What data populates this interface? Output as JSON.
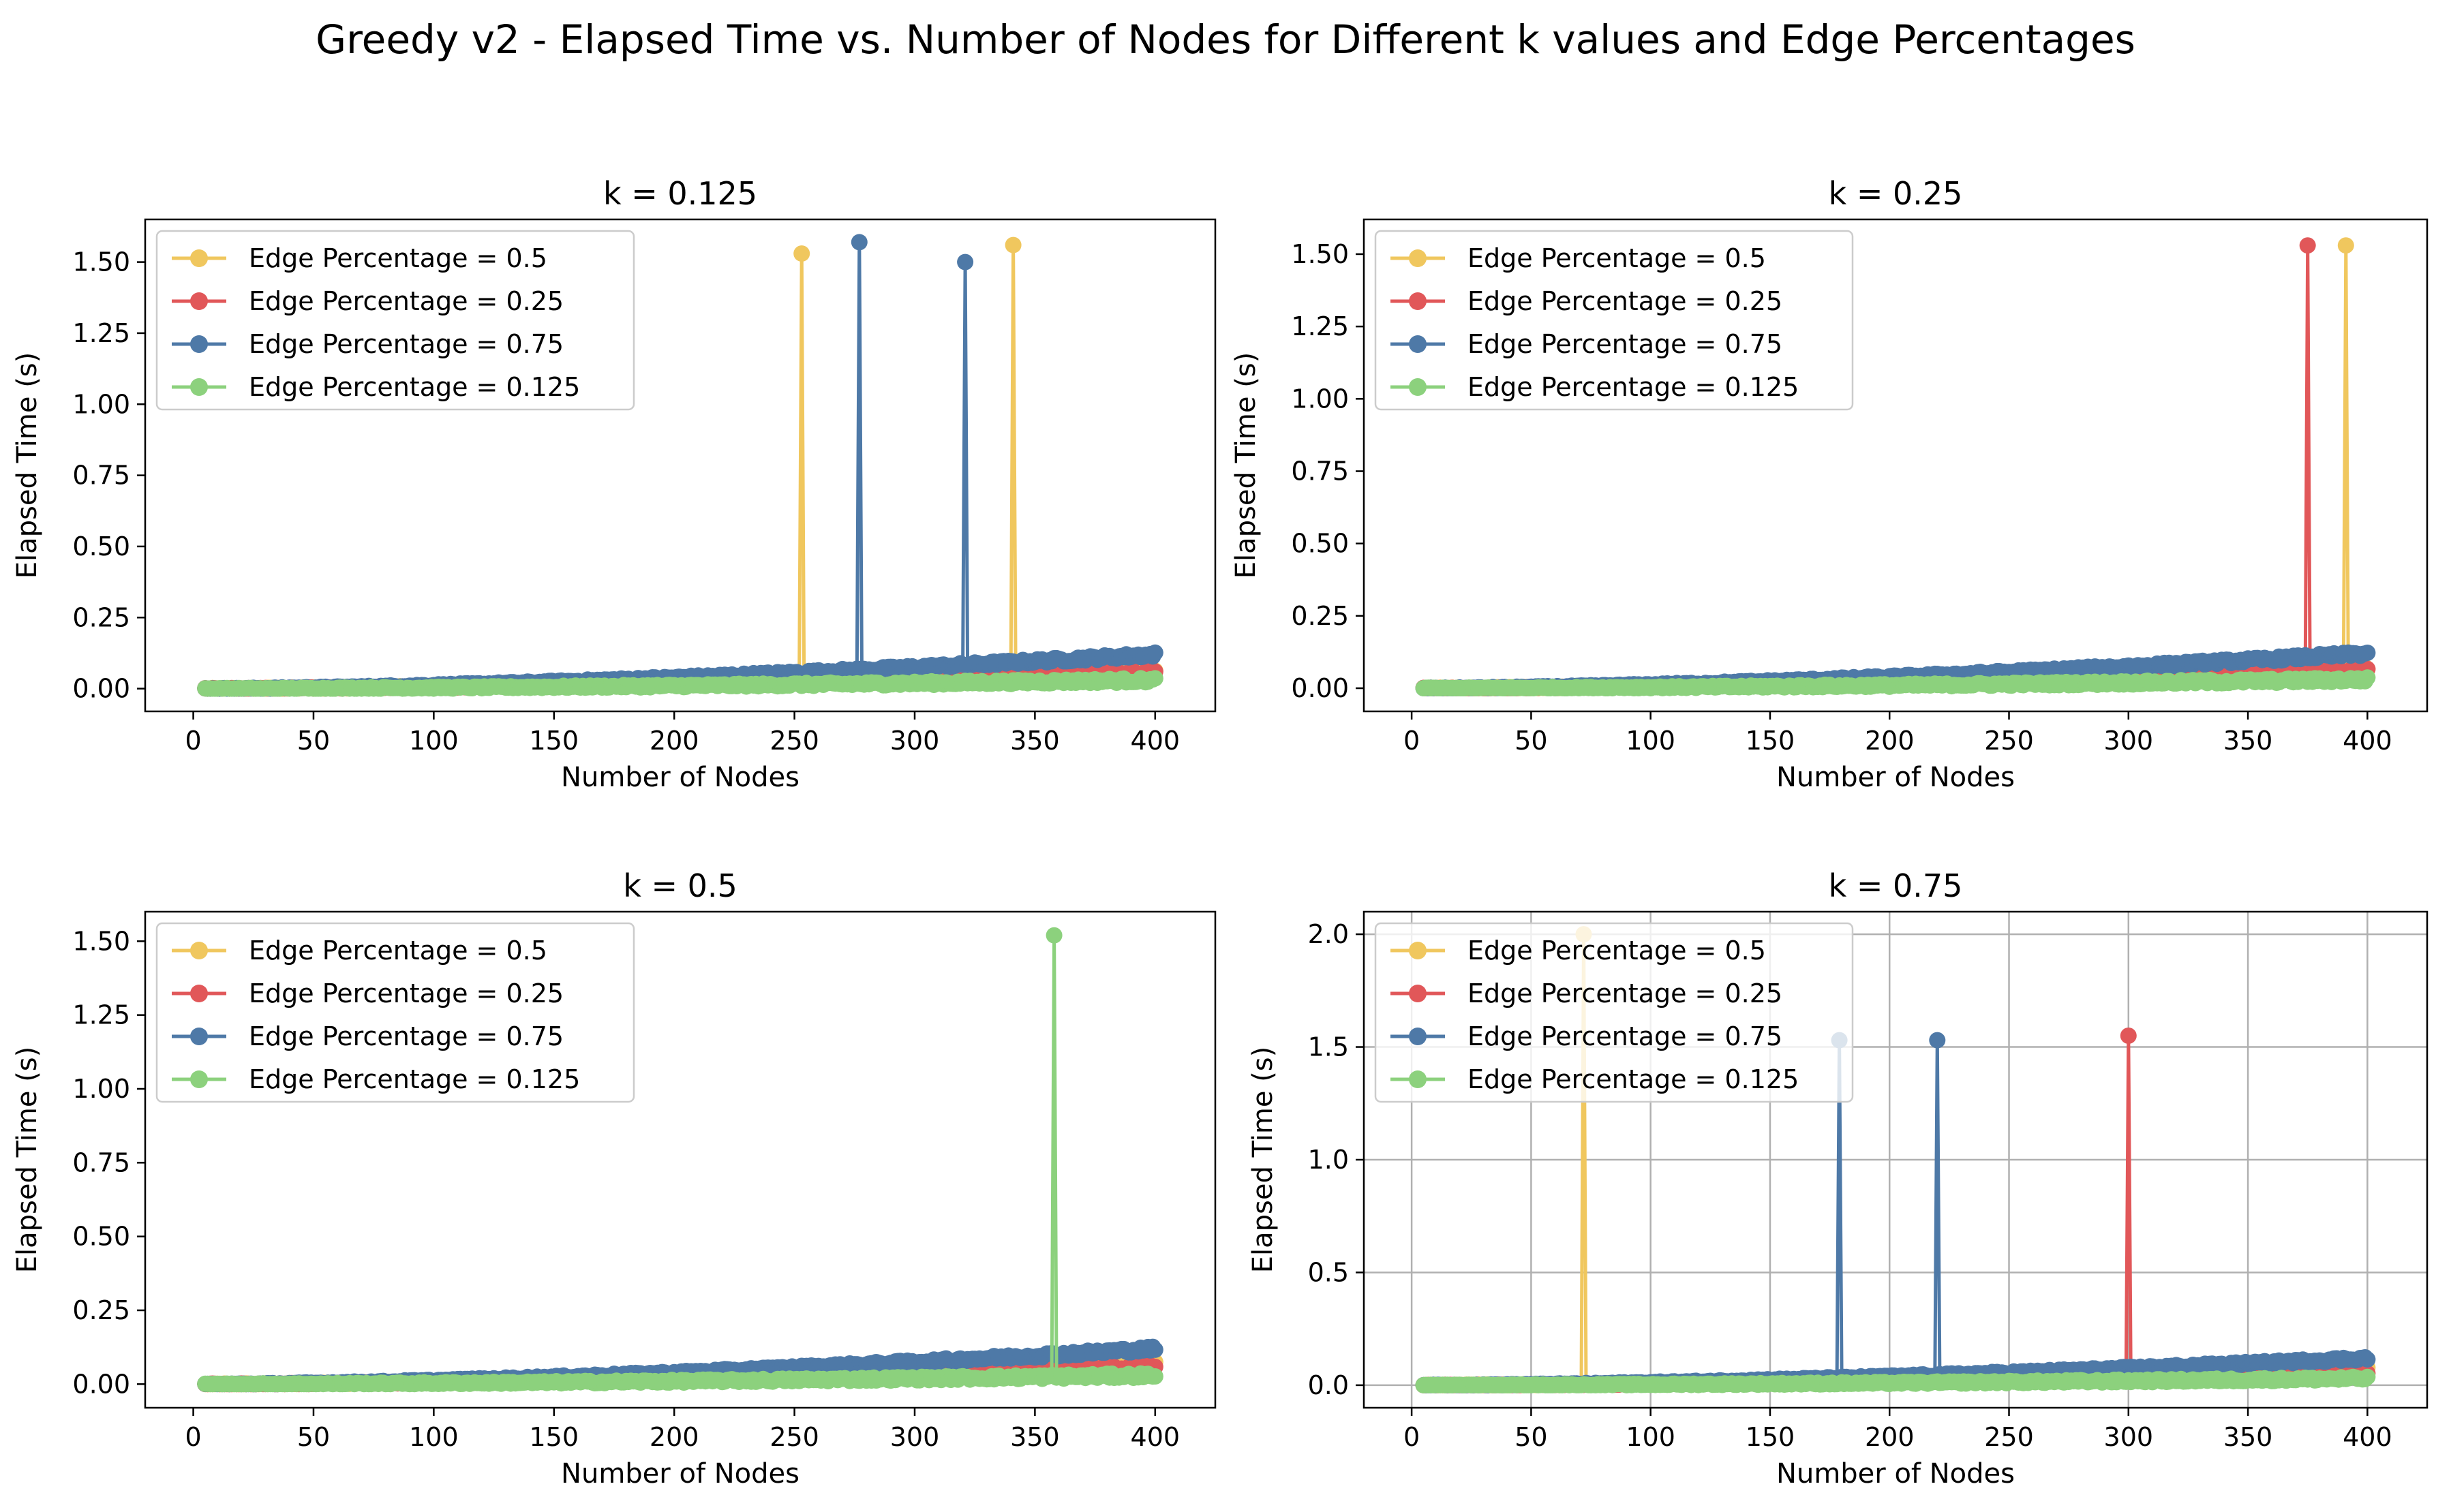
{
  "figure": {
    "suptitle": "Greedy v2 - Elapsed Time vs. Number of Nodes for Different k values and Edge Percentages"
  },
  "colors": {
    "ep_0_5": "#f0c75e",
    "ep_0_25": "#e15759",
    "ep_0_75": "#4e79a7",
    "ep_0_125": "#8cd17d"
  },
  "chart_data": [
    {
      "type": "line",
      "title": "k = 0.125",
      "xlabel": "Number of Nodes",
      "ylabel": "Elapsed Time (s)",
      "xlim": [
        -20,
        425
      ],
      "ylim": [
        -0.08,
        1.65
      ],
      "xticks": [
        0,
        50,
        100,
        150,
        200,
        250,
        300,
        350,
        400
      ],
      "yticks": [
        "0.00",
        "0.25",
        "0.50",
        "0.75",
        "1.00",
        "1.25",
        "1.50"
      ],
      "grid": false,
      "legend_position": "upper-left",
      "x_range": [
        5,
        400
      ],
      "series": [
        {
          "name": "Edge Percentage = 0.5",
          "color_key": "ep_0_5",
          "final_value": 0.07,
          "spikes": [
            {
              "x": 253,
              "y": 1.53
            },
            {
              "x": 341,
              "y": 1.56
            }
          ]
        },
        {
          "name": "Edge Percentage = 0.25",
          "color_key": "ep_0_25",
          "final_value": 0.06,
          "spikes": []
        },
        {
          "name": "Edge Percentage = 0.75",
          "color_key": "ep_0_75",
          "final_value": 0.12,
          "spikes": [
            {
              "x": 277,
              "y": 1.57
            },
            {
              "x": 321,
              "y": 1.5
            }
          ]
        },
        {
          "name": "Edge Percentage = 0.125",
          "color_key": "ep_0_125",
          "final_value": 0.03,
          "spikes": []
        }
      ]
    },
    {
      "type": "line",
      "title": "k = 0.25",
      "xlabel": "Number of Nodes",
      "ylabel": "Elapsed Time (s)",
      "xlim": [
        -20,
        425
      ],
      "ylim": [
        -0.08,
        1.62
      ],
      "xticks": [
        0,
        50,
        100,
        150,
        200,
        250,
        300,
        350,
        400
      ],
      "yticks": [
        "0.00",
        "0.25",
        "0.50",
        "0.75",
        "1.00",
        "1.25",
        "1.50"
      ],
      "grid": false,
      "legend_position": "upper-left",
      "x_range": [
        5,
        400
      ],
      "series": [
        {
          "name": "Edge Percentage = 0.5",
          "color_key": "ep_0_5",
          "final_value": 0.07,
          "spikes": [
            {
              "x": 391,
              "y": 1.53
            }
          ]
        },
        {
          "name": "Edge Percentage = 0.25",
          "color_key": "ep_0_25",
          "final_value": 0.06,
          "spikes": [
            {
              "x": 375,
              "y": 1.53
            }
          ]
        },
        {
          "name": "Edge Percentage = 0.75",
          "color_key": "ep_0_75",
          "final_value": 0.12,
          "spikes": []
        },
        {
          "name": "Edge Percentage = 0.125",
          "color_key": "ep_0_125",
          "final_value": 0.03,
          "spikes": []
        }
      ]
    },
    {
      "type": "line",
      "title": "k = 0.5",
      "xlabel": "Number of Nodes",
      "ylabel": "Elapsed Time (s)",
      "xlim": [
        -20,
        425
      ],
      "ylim": [
        -0.08,
        1.6
      ],
      "xticks": [
        0,
        50,
        100,
        150,
        200,
        250,
        300,
        350,
        400
      ],
      "yticks": [
        "0.00",
        "0.25",
        "0.50",
        "0.75",
        "1.00",
        "1.25",
        "1.50"
      ],
      "grid": false,
      "legend_position": "upper-left",
      "x_range": [
        5,
        400
      ],
      "series": [
        {
          "name": "Edge Percentage = 0.5",
          "color_key": "ep_0_5",
          "final_value": 0.07,
          "spikes": []
        },
        {
          "name": "Edge Percentage = 0.25",
          "color_key": "ep_0_25",
          "final_value": 0.06,
          "spikes": []
        },
        {
          "name": "Edge Percentage = 0.75",
          "color_key": "ep_0_75",
          "final_value": 0.12,
          "spikes": []
        },
        {
          "name": "Edge Percentage = 0.125",
          "color_key": "ep_0_125",
          "final_value": 0.03,
          "spikes": [
            {
              "x": 358,
              "y": 1.52
            }
          ]
        }
      ]
    },
    {
      "type": "line",
      "title": "k = 0.75",
      "xlabel": "Number of Nodes",
      "ylabel": "Elapsed Time (s)",
      "xlim": [
        -20,
        425
      ],
      "ylim": [
        -0.1,
        2.1
      ],
      "xticks": [
        0,
        50,
        100,
        150,
        200,
        250,
        300,
        350,
        400
      ],
      "yticks": [
        "0.0",
        "0.5",
        "1.0",
        "1.5",
        "2.0"
      ],
      "grid": true,
      "legend_position": "upper-left",
      "x_range": [
        5,
        400
      ],
      "series": [
        {
          "name": "Edge Percentage = 0.5",
          "color_key": "ep_0_5",
          "final_value": 0.07,
          "spikes": [
            {
              "x": 72,
              "y": 2.0
            }
          ]
        },
        {
          "name": "Edge Percentage = 0.25",
          "color_key": "ep_0_25",
          "final_value": 0.06,
          "spikes": [
            {
              "x": 300,
              "y": 1.55
            }
          ]
        },
        {
          "name": "Edge Percentage = 0.75",
          "color_key": "ep_0_75",
          "final_value": 0.12,
          "spikes": [
            {
              "x": 179,
              "y": 1.53
            },
            {
              "x": 220,
              "y": 1.53
            }
          ]
        },
        {
          "name": "Edge Percentage = 0.125",
          "color_key": "ep_0_125",
          "final_value": 0.03,
          "spikes": []
        }
      ]
    }
  ]
}
